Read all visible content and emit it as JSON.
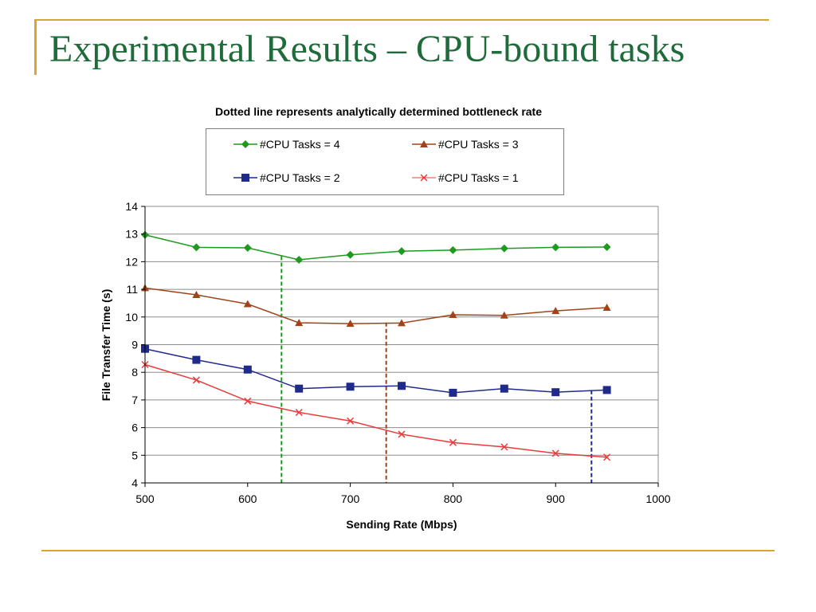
{
  "slide": {
    "title": "Experimental Results – CPU-bound tasks"
  },
  "colors": {
    "accent": "#d9a533",
    "title_text": "#1f6b3a"
  },
  "chart_data": {
    "type": "line",
    "title": "Dotted line represents analytically determined bottleneck rate",
    "xlabel": "Sending Rate (Mbps)",
    "ylabel": "File Transfer Time (s)",
    "xlim": [
      500,
      1000
    ],
    "ylim": [
      4,
      14
    ],
    "xticks": [
      500,
      600,
      700,
      800,
      900,
      1000
    ],
    "yticks": [
      4,
      5,
      6,
      7,
      8,
      9,
      10,
      11,
      12,
      13,
      14
    ],
    "grid": "horizontal",
    "legend_position": "top",
    "x": [
      500,
      550,
      600,
      650,
      700,
      750,
      800,
      850,
      900,
      950
    ],
    "series": [
      {
        "name": "#CPU Tasks = 4",
        "color": "#1e9a1e",
        "marker": "diamond",
        "values": [
          12.97,
          12.52,
          12.5,
          12.07,
          12.25,
          12.38,
          12.42,
          12.48,
          12.52,
          12.53
        ]
      },
      {
        "name": "#CPU Tasks = 3",
        "color": "#a0431a",
        "marker": "triangle",
        "values": [
          11.05,
          10.8,
          10.47,
          9.79,
          9.76,
          9.78,
          10.08,
          10.06,
          10.22,
          10.34
        ]
      },
      {
        "name": "#CPU Tasks = 2",
        "color": "#1f2a8a",
        "marker": "square",
        "values": [
          8.85,
          8.45,
          8.1,
          7.41,
          7.48,
          7.51,
          7.26,
          7.41,
          7.28,
          7.36
        ]
      },
      {
        "name": "#CPU Tasks = 1",
        "color": "#e83c3c",
        "marker": "x",
        "values": [
          8.28,
          7.72,
          6.96,
          6.55,
          6.24,
          5.76,
          5.46,
          5.3,
          5.07,
          4.93
        ]
      }
    ],
    "bottleneck_lines": [
      {
        "series": "#CPU Tasks = 4",
        "x": 633,
        "y_top": 12.2,
        "color": "#1e9a1e"
      },
      {
        "series": "#CPU Tasks = 3",
        "x": 735,
        "y_top": 9.8,
        "color": "#a0431a"
      },
      {
        "series": "#CPU Tasks = 2",
        "x": 935,
        "y_top": 7.35,
        "color": "#1f2a8a"
      }
    ]
  }
}
